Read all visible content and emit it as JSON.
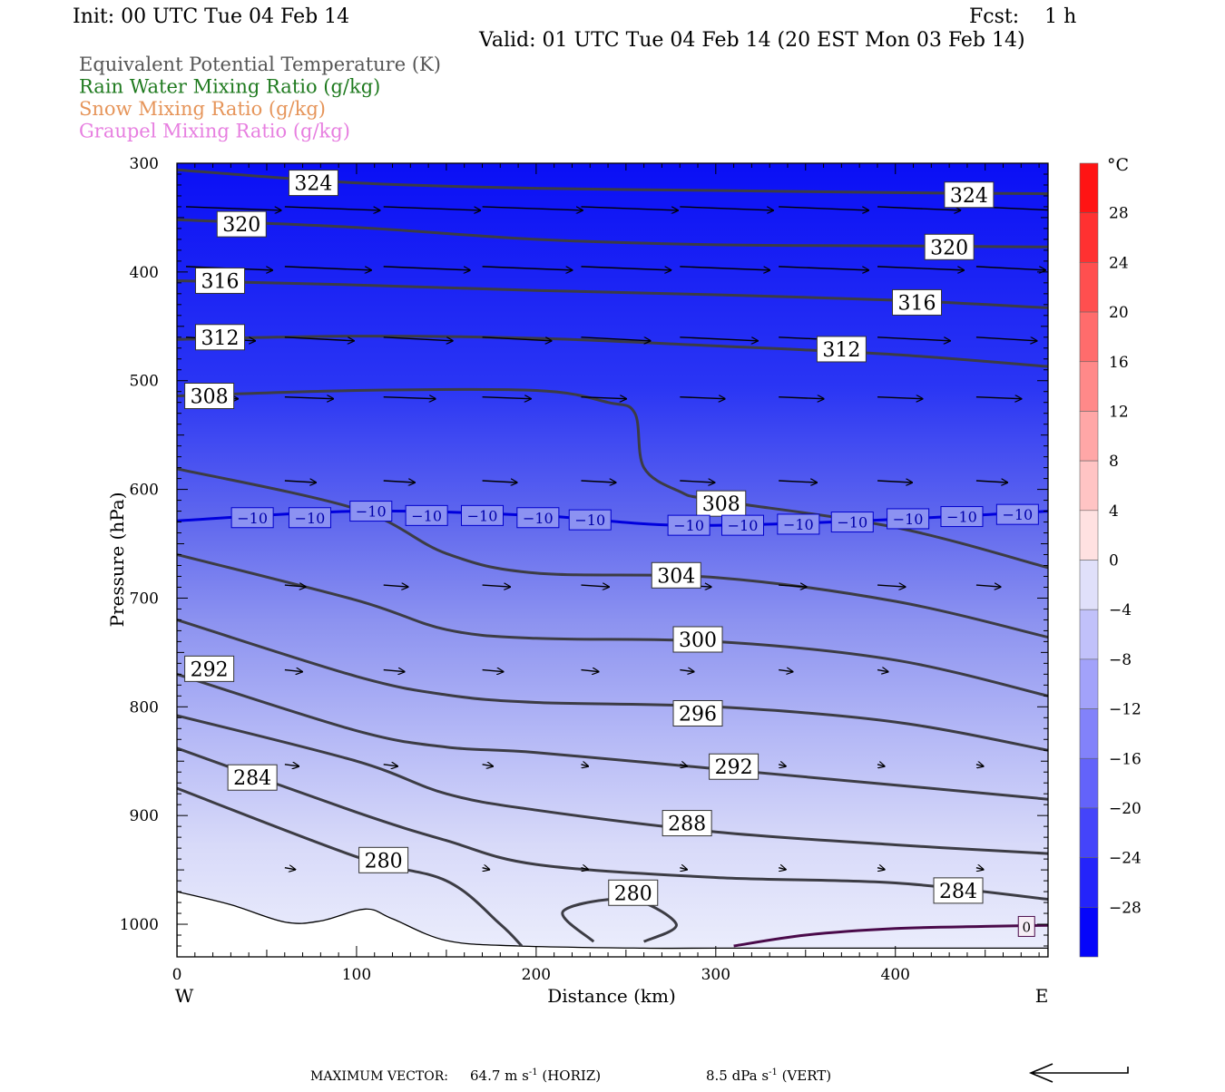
{
  "header": {
    "init": "Init: 00 UTC Tue 04 Feb 14",
    "fcst": "Fcst:    1 h",
    "valid": "Valid: 01 UTC Tue 04 Feb 14 (20 EST Mon 03 Feb 14)"
  },
  "legend": [
    {
      "label": "Equivalent Potential Temperature (K)",
      "color": "#555555"
    },
    {
      "label": "Rain Water Mixing Ratio (g/kg)",
      "color": "#1f7a1f"
    },
    {
      "label": "Snow Mixing Ratio (g/kg)",
      "color": "#e6955a"
    },
    {
      "label": "Graupel Mixing Ratio (g/kg)",
      "color": "#e77fe0"
    }
  ],
  "axes": {
    "ylabel": "Pressure (hPa)",
    "xlabel": "Distance (km)",
    "west": "W",
    "east": "E"
  },
  "colorbar": {
    "unit": "°C",
    "ticks": [
      "28",
      "24",
      "20",
      "16",
      "12",
      "8",
      "4",
      "0",
      "−4",
      "−8",
      "−12",
      "−16",
      "−20",
      "−24",
      "−28"
    ]
  },
  "footer": {
    "max_vector_label": "MAXIMUM VECTOR:",
    "horiz_value": "64.7 m s",
    "horiz_suffix": " (HORIZ)",
    "vert_value": "8.5 dPa s",
    "vert_suffix": " (VERT)",
    "exponent": "-1"
  },
  "chart_data": {
    "type": "cross-section contour",
    "x_range": [
      0,
      485
    ],
    "y_range": [
      1030,
      300
    ],
    "x_ticks": [
      0,
      100,
      200,
      300,
      400
    ],
    "y_ticks": [
      300,
      400,
      500,
      600,
      700,
      800,
      900,
      1000
    ],
    "temperature_fill_levels_C": [
      -32,
      -28,
      -24,
      -20,
      -16,
      -12,
      -8,
      -4,
      0,
      4,
      8,
      12,
      16,
      20,
      24,
      28,
      32
    ],
    "theta_e_contours": [
      {
        "label": "324",
        "points": [
          [
            0,
            306
          ],
          [
            100,
            318
          ],
          [
            200,
            323
          ],
          [
            300,
            325
          ],
          [
            400,
            327
          ],
          [
            485,
            328
          ]
        ],
        "labels": [
          [
            76,
            318
          ],
          [
            441,
            329
          ]
        ]
      },
      {
        "label": "320",
        "points": [
          [
            0,
            352
          ],
          [
            100,
            359
          ],
          [
            200,
            370
          ],
          [
            300,
            375
          ],
          [
            400,
            376
          ],
          [
            485,
            377
          ]
        ],
        "labels": [
          [
            36,
            356
          ],
          [
            430,
            377
          ]
        ]
      },
      {
        "label": "316",
        "points": [
          [
            0,
            408
          ],
          [
            100,
            412
          ],
          [
            200,
            417
          ],
          [
            300,
            421
          ],
          [
            400,
            426
          ],
          [
            485,
            433
          ]
        ],
        "labels": [
          [
            24,
            408
          ],
          [
            412,
            428
          ]
        ]
      },
      {
        "label": "312",
        "points": [
          [
            0,
            462
          ],
          [
            100,
            459
          ],
          [
            200,
            461
          ],
          [
            300,
            468
          ],
          [
            400,
            476
          ],
          [
            485,
            487
          ]
        ],
        "labels": [
          [
            24,
            460
          ],
          [
            370,
            471
          ]
        ]
      },
      {
        "label": "308",
        "points": [
          [
            0,
            514
          ],
          [
            100,
            509
          ],
          [
            200,
            509
          ],
          [
            240,
            520
          ],
          [
            255,
            530
          ],
          [
            260,
            580
          ],
          [
            280,
            602
          ],
          [
            300,
            610
          ],
          [
            400,
            635
          ],
          [
            485,
            672
          ]
        ],
        "labels": [
          [
            18,
            514
          ],
          [
            303,
            613
          ]
        ]
      },
      {
        "label": "304",
        "points": [
          [
            0,
            581
          ],
          [
            100,
            618
          ],
          [
            150,
            659
          ],
          [
            200,
            677
          ],
          [
            300,
            681
          ],
          [
            400,
            703
          ],
          [
            485,
            736
          ]
        ],
        "labels": [
          [
            278,
            679
          ]
        ]
      },
      {
        "label": "300",
        "points": [
          [
            0,
            660
          ],
          [
            100,
            702
          ],
          [
            150,
            729
          ],
          [
            200,
            737
          ],
          [
            300,
            740
          ],
          [
            400,
            757
          ],
          [
            485,
            790
          ]
        ],
        "labels": [
          [
            290,
            738
          ]
        ]
      },
      {
        "label": "296",
        "points": [
          [
            0,
            720
          ],
          [
            100,
            772
          ],
          [
            150,
            789
          ],
          [
            200,
            796
          ],
          [
            300,
            800
          ],
          [
            400,
            814
          ],
          [
            485,
            840
          ]
        ],
        "labels": [
          [
            290,
            806
          ]
        ]
      },
      {
        "label": "292",
        "points": [
          [
            0,
            770
          ],
          [
            100,
            822
          ],
          [
            150,
            837
          ],
          [
            200,
            842
          ],
          [
            300,
            857
          ],
          [
            400,
            872
          ],
          [
            485,
            885
          ]
        ],
        "labels": [
          [
            18,
            765
          ],
          [
            310,
            855
          ]
        ]
      },
      {
        "label": "288",
        "points": [
          [
            0,
            808
          ],
          [
            100,
            850
          ],
          [
            150,
            880
          ],
          [
            200,
            895
          ],
          [
            300,
            915
          ],
          [
            400,
            927
          ],
          [
            485,
            935
          ]
        ],
        "labels": [
          [
            284,
            907
          ]
        ]
      },
      {
        "label": "284",
        "points": [
          [
            0,
            838
          ],
          [
            100,
            897
          ],
          [
            150,
            923
          ],
          [
            200,
            945
          ],
          [
            300,
            957
          ],
          [
            400,
            962
          ],
          [
            485,
            977
          ]
        ],
        "labels": [
          [
            42,
            865
          ],
          [
            435,
            969
          ]
        ]
      },
      {
        "label": "280",
        "points": [
          [
            0,
            875
          ],
          [
            100,
            938
          ],
          [
            150,
            960
          ],
          [
            180,
            1000
          ],
          [
            192,
            1020
          ]
        ],
        "labels": [
          [
            115,
            941
          ]
        ]
      },
      {
        "label": "280",
        "points": [
          [
            232,
            1016
          ],
          [
            215,
            988
          ],
          [
            252,
            977
          ],
          [
            278,
            1000
          ],
          [
            260,
            1016
          ]
        ],
        "labels": [
          [
            254,
            971
          ]
        ]
      }
    ],
    "isotherm_minus10": {
      "label": "-10",
      "color": "#0000dd",
      "points": [
        [
          0,
          629
        ],
        [
          100,
          620
        ],
        [
          200,
          624
        ],
        [
          280,
          633
        ],
        [
          380,
          629
        ],
        [
          485,
          620
        ]
      ],
      "labels": [
        [
          42,
          626
        ],
        [
          74,
          626
        ],
        [
          108,
          620
        ],
        [
          139,
          624
        ],
        [
          170,
          624
        ],
        [
          201,
          626
        ],
        [
          230,
          628
        ],
        [
          285,
          633
        ],
        [
          315,
          633
        ],
        [
          346,
          632
        ],
        [
          376,
          630
        ],
        [
          407,
          627
        ],
        [
          437,
          625
        ],
        [
          468,
          623
        ]
      ]
    },
    "isotherm_0": {
      "label": "0",
      "color": "#4a0a4a",
      "points": [
        [
          310,
          1020
        ],
        [
          350,
          1010
        ],
        [
          400,
          1004
        ],
        [
          450,
          1002
        ],
        [
          485,
          1001
        ]
      ],
      "labels": [
        [
          473,
          1002
        ]
      ]
    },
    "surface_outline": [
      [
        0,
        970
      ],
      [
        30,
        982
      ],
      [
        60,
        998
      ],
      [
        80,
        997
      ],
      [
        105,
        986
      ],
      [
        120,
        995
      ],
      [
        150,
        1015
      ],
      [
        190,
        1020
      ],
      [
        260,
        1022
      ],
      [
        300,
        1022
      ],
      [
        485,
        1022
      ]
    ],
    "wind_rows": [
      {
        "p": 340,
        "x": [
          0,
          55,
          110,
          165,
          220,
          275,
          330,
          385,
          440,
          485
        ],
        "len": [
          55,
          55,
          56,
          58,
          56,
          54,
          52,
          48,
          46,
          30
        ]
      },
      {
        "p": 395,
        "x": [
          0,
          55,
          110,
          165,
          220,
          275,
          330,
          385,
          440
        ],
        "len": [
          50,
          50,
          50,
          52,
          52,
          52,
          52,
          50,
          40
        ]
      },
      {
        "p": 460,
        "x": [
          0,
          55,
          110,
          165,
          220,
          275,
          330,
          385,
          440
        ],
        "len": [
          40,
          40,
          40,
          40,
          40,
          45,
          45,
          42,
          35
        ]
      },
      {
        "p": 515,
        "x": [
          0,
          55,
          110,
          165,
          220,
          275,
          330,
          385,
          440
        ],
        "len": [
          30,
          28,
          30,
          28,
          26,
          26,
          26,
          26,
          26
        ]
      },
      {
        "p": 592,
        "x": [
          55,
          110,
          165,
          220,
          275,
          330,
          385,
          440
        ],
        "len": [
          18,
          18,
          20,
          20,
          20,
          22,
          20,
          18
        ]
      },
      {
        "p": 688,
        "x": [
          55,
          110,
          165,
          220,
          275,
          330,
          385,
          440
        ],
        "len": [
          12,
          14,
          16,
          16,
          18,
          16,
          16,
          14
        ]
      },
      {
        "p": 766,
        "x": [
          55,
          110,
          165,
          220,
          275,
          330,
          385,
          440
        ],
        "len": [
          10,
          12,
          12,
          10,
          8,
          8,
          6,
          0
        ]
      },
      {
        "p": 853,
        "x": [
          55,
          110,
          165,
          220,
          275,
          330,
          385,
          440
        ],
        "len": [
          8,
          8,
          6,
          4,
          4,
          4,
          4,
          4
        ]
      },
      {
        "p": 948,
        "x": [
          55,
          110,
          165,
          220,
          275,
          330,
          385,
          440
        ],
        "len": [
          6,
          4,
          4,
          4,
          4,
          4,
          4,
          4
        ]
      }
    ]
  }
}
